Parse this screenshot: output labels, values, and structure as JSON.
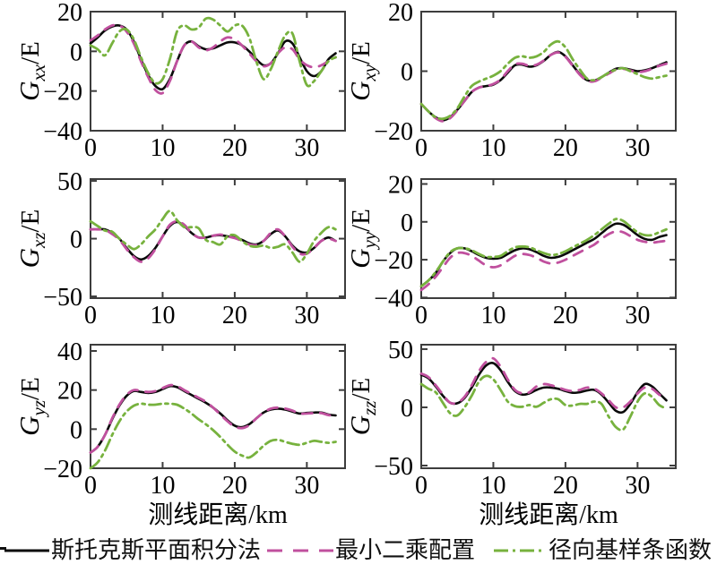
{
  "figure": {
    "xlabel": "测线距离/km",
    "background": "#ffffff",
    "axis_color": "#3d3d3d"
  },
  "legend": [
    {
      "id": "stokes",
      "label": "斯托克斯平面积分法",
      "color": "#0a0a0a",
      "style": "solid"
    },
    {
      "id": "lsc",
      "label": "最小二乘配置",
      "color": "#c0509e",
      "style": "dashed"
    },
    {
      "id": "rbf",
      "label": "径向基样条函数",
      "color": "#77b23e",
      "style": "dashdot"
    }
  ],
  "chart_data": [
    {
      "id": "gxx",
      "type": "line",
      "ylabel": {
        "main": "G",
        "sub": "xx",
        "unit": "/E"
      },
      "xlim": [
        0,
        35.3
      ],
      "ylim": [
        -40,
        20
      ],
      "xticks": [
        0,
        10,
        20,
        30
      ],
      "yticks": [
        20,
        0,
        -20,
        -40
      ],
      "x": {
        "start": 0,
        "step": 1,
        "count": 35
      },
      "series": [
        {
          "id": "stokes",
          "values": [
            4,
            7,
            10.5,
            12.5,
            13,
            11,
            5,
            -4,
            -12,
            -17.5,
            -19,
            -14,
            -5,
            3,
            5,
            2.5,
            1,
            1.5,
            3,
            4.5,
            4.5,
            3,
            0,
            -4,
            -7,
            -6,
            -1,
            5,
            4,
            -3,
            -10,
            -12.5,
            -10,
            -4,
            -1
          ]
        },
        {
          "id": "lsc",
          "values": [
            5.5,
            8,
            11,
            13,
            13,
            10,
            4,
            -5,
            -13,
            -19.5,
            -21,
            -15,
            -5,
            3,
            5,
            2,
            0.5,
            2,
            5,
            7,
            6,
            3,
            -1,
            -5,
            -7.5,
            -6,
            -1,
            2,
            1,
            -4,
            -7,
            -8,
            -7,
            -5,
            -3
          ]
        },
        {
          "id": "rbf",
          "values": [
            3,
            1,
            -2,
            4,
            10,
            11,
            6,
            -3,
            -11,
            -16,
            -14,
            -4,
            10,
            13,
            11,
            12,
            16.5,
            16,
            13,
            10,
            13,
            13,
            7,
            -5,
            -14,
            -9,
            0,
            8,
            9,
            -5,
            -17,
            -15,
            -10,
            -5,
            -3
          ]
        }
      ]
    },
    {
      "id": "gxy",
      "type": "line",
      "ylabel": {
        "main": "G",
        "sub": "xy",
        "unit": "/E"
      },
      "xlim": [
        0,
        35.3
      ],
      "ylim": [
        -20,
        20
      ],
      "xticks": [
        0,
        10,
        20,
        30
      ],
      "yticks": [
        20,
        0,
        -20
      ],
      "x": {
        "start": 0,
        "step": 1,
        "count": 35
      },
      "series": [
        {
          "id": "stokes",
          "values": [
            -11,
            -13.5,
            -15.5,
            -16.5,
            -15.5,
            -13,
            -10,
            -7,
            -5.5,
            -5,
            -4.5,
            -3,
            -0.5,
            2,
            2.2,
            1.5,
            2,
            3.5,
            5.5,
            6.5,
            5,
            2,
            -1,
            -3,
            -3.2,
            -2,
            -0.5,
            0.8,
            1,
            0.5,
            0,
            0.3,
            1,
            2,
            3
          ]
        },
        {
          "id": "lsc",
          "values": [
            -11,
            -13.5,
            -15.8,
            -16.8,
            -15.8,
            -13.2,
            -10,
            -7,
            -5.5,
            -5,
            -4.3,
            -2.8,
            0,
            2.3,
            2.5,
            1.8,
            2.2,
            3.6,
            5.5,
            6.3,
            4.8,
            1.8,
            -1.2,
            -3.2,
            -3.4,
            -2.2,
            -0.8,
            0.5,
            0.8,
            0.2,
            -0.3,
            0,
            0.8,
            1.8,
            2.5
          ]
        },
        {
          "id": "rbf",
          "values": [
            -11,
            -13.5,
            -15.5,
            -16,
            -15,
            -12.5,
            -8.5,
            -5,
            -3.5,
            -2.5,
            -1.5,
            0,
            2.5,
            4.5,
            5,
            4.5,
            5,
            6.5,
            9,
            10,
            8,
            4,
            0.5,
            -2.5,
            -3,
            -2,
            -0.5,
            0.5,
            1,
            0,
            -1,
            -2,
            -2.5,
            -2,
            -1.5
          ]
        }
      ]
    },
    {
      "id": "gxz",
      "type": "line",
      "ylabel": {
        "main": "G",
        "sub": "xz",
        "unit": "/E"
      },
      "xlim": [
        0,
        35.3
      ],
      "ylim": [
        -51.5,
        51.6
      ],
      "xticks": [
        0,
        10,
        20,
        30
      ],
      "yticks": [
        50,
        0,
        -50
      ],
      "x": {
        "start": 0,
        "step": 1,
        "count": 35
      },
      "series": [
        {
          "id": "stokes",
          "values": [
            8,
            8,
            8,
            5,
            0,
            -8,
            -15,
            -18,
            -15,
            -8,
            2,
            11,
            14.5,
            11,
            5,
            1,
            1,
            2.5,
            3,
            2,
            1,
            -1,
            -4,
            -5,
            -2,
            4,
            7,
            2,
            -6,
            -11,
            -12,
            -8,
            -2,
            1,
            -2
          ]
        },
        {
          "id": "lsc",
          "values": [
            8,
            8,
            7.5,
            4,
            -1,
            -9,
            -16,
            -20,
            -17,
            -9,
            2,
            12,
            15,
            12,
            5,
            1,
            1,
            2.5,
            3.5,
            2,
            0.5,
            -2,
            -5,
            -5.5,
            -2,
            5,
            8,
            2,
            -7,
            -13,
            -13,
            -8,
            -2,
            0,
            -2
          ]
        },
        {
          "id": "rbf",
          "values": [
            15,
            11,
            7,
            6,
            0,
            -5,
            -9,
            -5,
            2,
            8,
            17,
            24,
            16,
            10,
            10,
            9,
            -1,
            -3,
            -5,
            2,
            3,
            -2,
            -6,
            -7,
            -6,
            -8,
            -7,
            -5,
            -12,
            -20,
            -13,
            -2,
            5,
            10,
            8
          ]
        }
      ]
    },
    {
      "id": "gyy",
      "type": "line",
      "ylabel": {
        "main": "G",
        "sub": "yy",
        "unit": "/E"
      },
      "xlim": [
        0,
        35.3
      ],
      "ylim": [
        -40.3,
        22.6
      ],
      "xticks": [
        0,
        10,
        20,
        30
      ],
      "yticks": [
        20,
        0,
        -20,
        -40
      ],
      "x": {
        "start": 0,
        "step": 1,
        "count": 35
      },
      "series": [
        {
          "id": "stokes",
          "values": [
            -34,
            -31,
            -27,
            -21,
            -16.5,
            -14,
            -14,
            -15.5,
            -17.5,
            -19,
            -19.5,
            -19,
            -17,
            -15,
            -14,
            -14.5,
            -16,
            -18,
            -19,
            -18.5,
            -17,
            -15,
            -13,
            -11,
            -9,
            -6,
            -3,
            -1,
            -1.5,
            -4,
            -7,
            -9,
            -9.5,
            -8,
            -7
          ]
        },
        {
          "id": "lsc",
          "values": [
            -36,
            -33,
            -29,
            -24,
            -19,
            -16.5,
            -16.5,
            -18,
            -20.5,
            -23,
            -24,
            -23,
            -20.5,
            -18,
            -17,
            -17.5,
            -19,
            -21,
            -22,
            -21.5,
            -20,
            -18,
            -16,
            -14,
            -12,
            -9,
            -6.5,
            -5,
            -5.5,
            -7.5,
            -9.5,
            -10.5,
            -11,
            -10.5,
            -10
          ]
        },
        {
          "id": "rbf",
          "values": [
            -34,
            -31,
            -26.5,
            -21,
            -16,
            -14,
            -14,
            -15,
            -17,
            -18.5,
            -18.5,
            -18,
            -15.5,
            -13.5,
            -13,
            -13.5,
            -15,
            -16.5,
            -17.5,
            -17,
            -15.5,
            -13.5,
            -11.5,
            -9.5,
            -7,
            -4,
            -1,
            1.5,
            0.5,
            -2.5,
            -5.5,
            -7,
            -7,
            -5.5,
            -4
          ]
        }
      ]
    },
    {
      "id": "gyz",
      "type": "line",
      "ylabel": {
        "main": "G",
        "sub": "yz",
        "unit": "/E"
      },
      "xlim": [
        0,
        35.3
      ],
      "ylim": [
        -20,
        43.2
      ],
      "xticks": [
        0,
        10,
        20,
        30
      ],
      "yticks": [
        40,
        20,
        0,
        -20
      ],
      "x": {
        "start": 0,
        "step": 1,
        "count": 35
      },
      "series": [
        {
          "id": "stokes",
          "values": [
            -12,
            -9,
            -3,
            5,
            12,
            17,
            19.5,
            19,
            18.5,
            19,
            20.5,
            22,
            21.5,
            19.5,
            17.5,
            15.5,
            13.5,
            11,
            8,
            4.5,
            1.8,
            1,
            2.5,
            5.5,
            8.5,
            10,
            10.5,
            10,
            9,
            8,
            8.3,
            8.5,
            8.5,
            7.5,
            7
          ]
        },
        {
          "id": "lsc",
          "values": [
            -12,
            -9,
            -3,
            5.5,
            12.5,
            17.5,
            20,
            19.5,
            19,
            19.5,
            21,
            22.5,
            22,
            20,
            18,
            16,
            14,
            11,
            7.5,
            4,
            1.3,
            0.5,
            2,
            5.5,
            8.5,
            10.5,
            11,
            10.5,
            9.5,
            8,
            8,
            8.2,
            8.2,
            7.2,
            6.8
          ]
        },
        {
          "id": "rbf",
          "values": [
            -20,
            -17,
            -11,
            -3,
            4,
            9,
            12,
            13,
            12.5,
            12.5,
            13,
            13,
            12.5,
            10.5,
            8,
            5,
            2.5,
            -0.5,
            -4,
            -8,
            -11.5,
            -13.5,
            -14.5,
            -12,
            -8.5,
            -6,
            -5.5,
            -6.5,
            -7.5,
            -8,
            -7,
            -6,
            -6.5,
            -7,
            -6.5
          ]
        }
      ]
    },
    {
      "id": "gzz",
      "type": "line",
      "ylabel": {
        "main": "G",
        "sub": "zz",
        "unit": "/E"
      },
      "xlim": [
        0,
        35.3
      ],
      "ylim": [
        -52.3,
        53.8
      ],
      "xticks": [
        0,
        10,
        20,
        30
      ],
      "yticks": [
        50,
        0,
        -50
      ],
      "x": {
        "start": 0,
        "step": 1,
        "count": 35
      },
      "series": [
        {
          "id": "stokes",
          "values": [
            28,
            25,
            18,
            10,
            4,
            3.5,
            8,
            17,
            28,
            36,
            38,
            32,
            22,
            14,
            11,
            12,
            15,
            17,
            17,
            16,
            14,
            12.5,
            13,
            14.5,
            15,
            11,
            4,
            -3,
            -4,
            3,
            13,
            20,
            18,
            12,
            6
          ]
        },
        {
          "id": "lsc",
          "values": [
            29,
            26,
            19,
            11,
            4,
            4,
            9,
            19,
            31,
            39,
            42,
            35,
            24,
            15,
            12,
            13,
            18,
            20,
            19,
            17,
            15,
            14,
            15,
            17,
            16,
            12,
            6,
            0,
            0,
            5,
            12,
            17,
            16,
            11,
            7
          ]
        },
        {
          "id": "rbf",
          "values": [
            20,
            16,
            13,
            4,
            -5,
            -7,
            0,
            10,
            22,
            27,
            24,
            15,
            5,
            1,
            0.5,
            2,
            0.5,
            4,
            7,
            7,
            2,
            1.5,
            3,
            3,
            5,
            3,
            -8,
            -17,
            -19,
            -8,
            5,
            12,
            9,
            2,
            -1
          ]
        }
      ]
    }
  ]
}
